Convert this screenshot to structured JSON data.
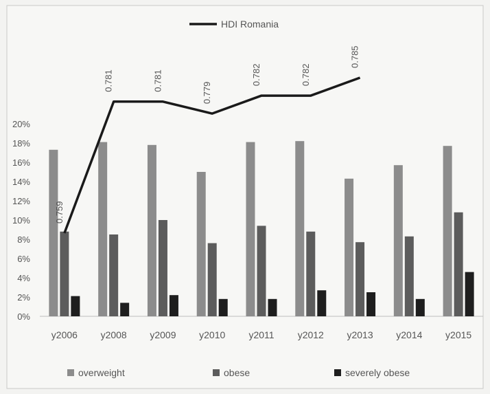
{
  "chart_data": {
    "type": "bar",
    "categories": [
      "y2006",
      "y2008",
      "y2009",
      "y2010",
      "y2011",
      "y2012",
      "y2013",
      "y2014",
      "y2015"
    ],
    "ylim": [
      0,
      0.2
    ],
    "y_ticks": [
      "0%",
      "2%",
      "4%",
      "6%",
      "8%",
      "10%",
      "12%",
      "14%",
      "16%",
      "18%",
      "20%"
    ],
    "grid": false,
    "series": [
      {
        "name": "overweight",
        "color": "#8c8c8c",
        "values": [
          0.173,
          0.181,
          0.178,
          0.15,
          0.181,
          0.182,
          0.143,
          0.157,
          0.177
        ]
      },
      {
        "name": "obese",
        "color": "#5c5c5c",
        "values": [
          0.088,
          0.085,
          0.1,
          0.076,
          0.094,
          0.088,
          0.077,
          0.083,
          0.108
        ]
      },
      {
        "name": "severely obese",
        "color": "#1e1e1e",
        "values": [
          0.021,
          0.014,
          0.022,
          0.018,
          0.018,
          0.027,
          0.025,
          0.018,
          0.046
        ]
      }
    ],
    "line": {
      "name": "HDI Romania",
      "color": "#1a1a1a",
      "categories": [
        "y2006",
        "y2008",
        "y2009",
        "y2010",
        "y2011",
        "y2012",
        "y2013"
      ],
      "values": [
        0.759,
        0.781,
        0.781,
        0.779,
        0.782,
        0.782,
        0.785
      ],
      "labels": [
        "0.759",
        "0.781",
        "0.781",
        "0.779",
        "0.782",
        "0.782",
        "0.785"
      ]
    },
    "legend_position": "bottom",
    "line_legend_position": "top"
  }
}
